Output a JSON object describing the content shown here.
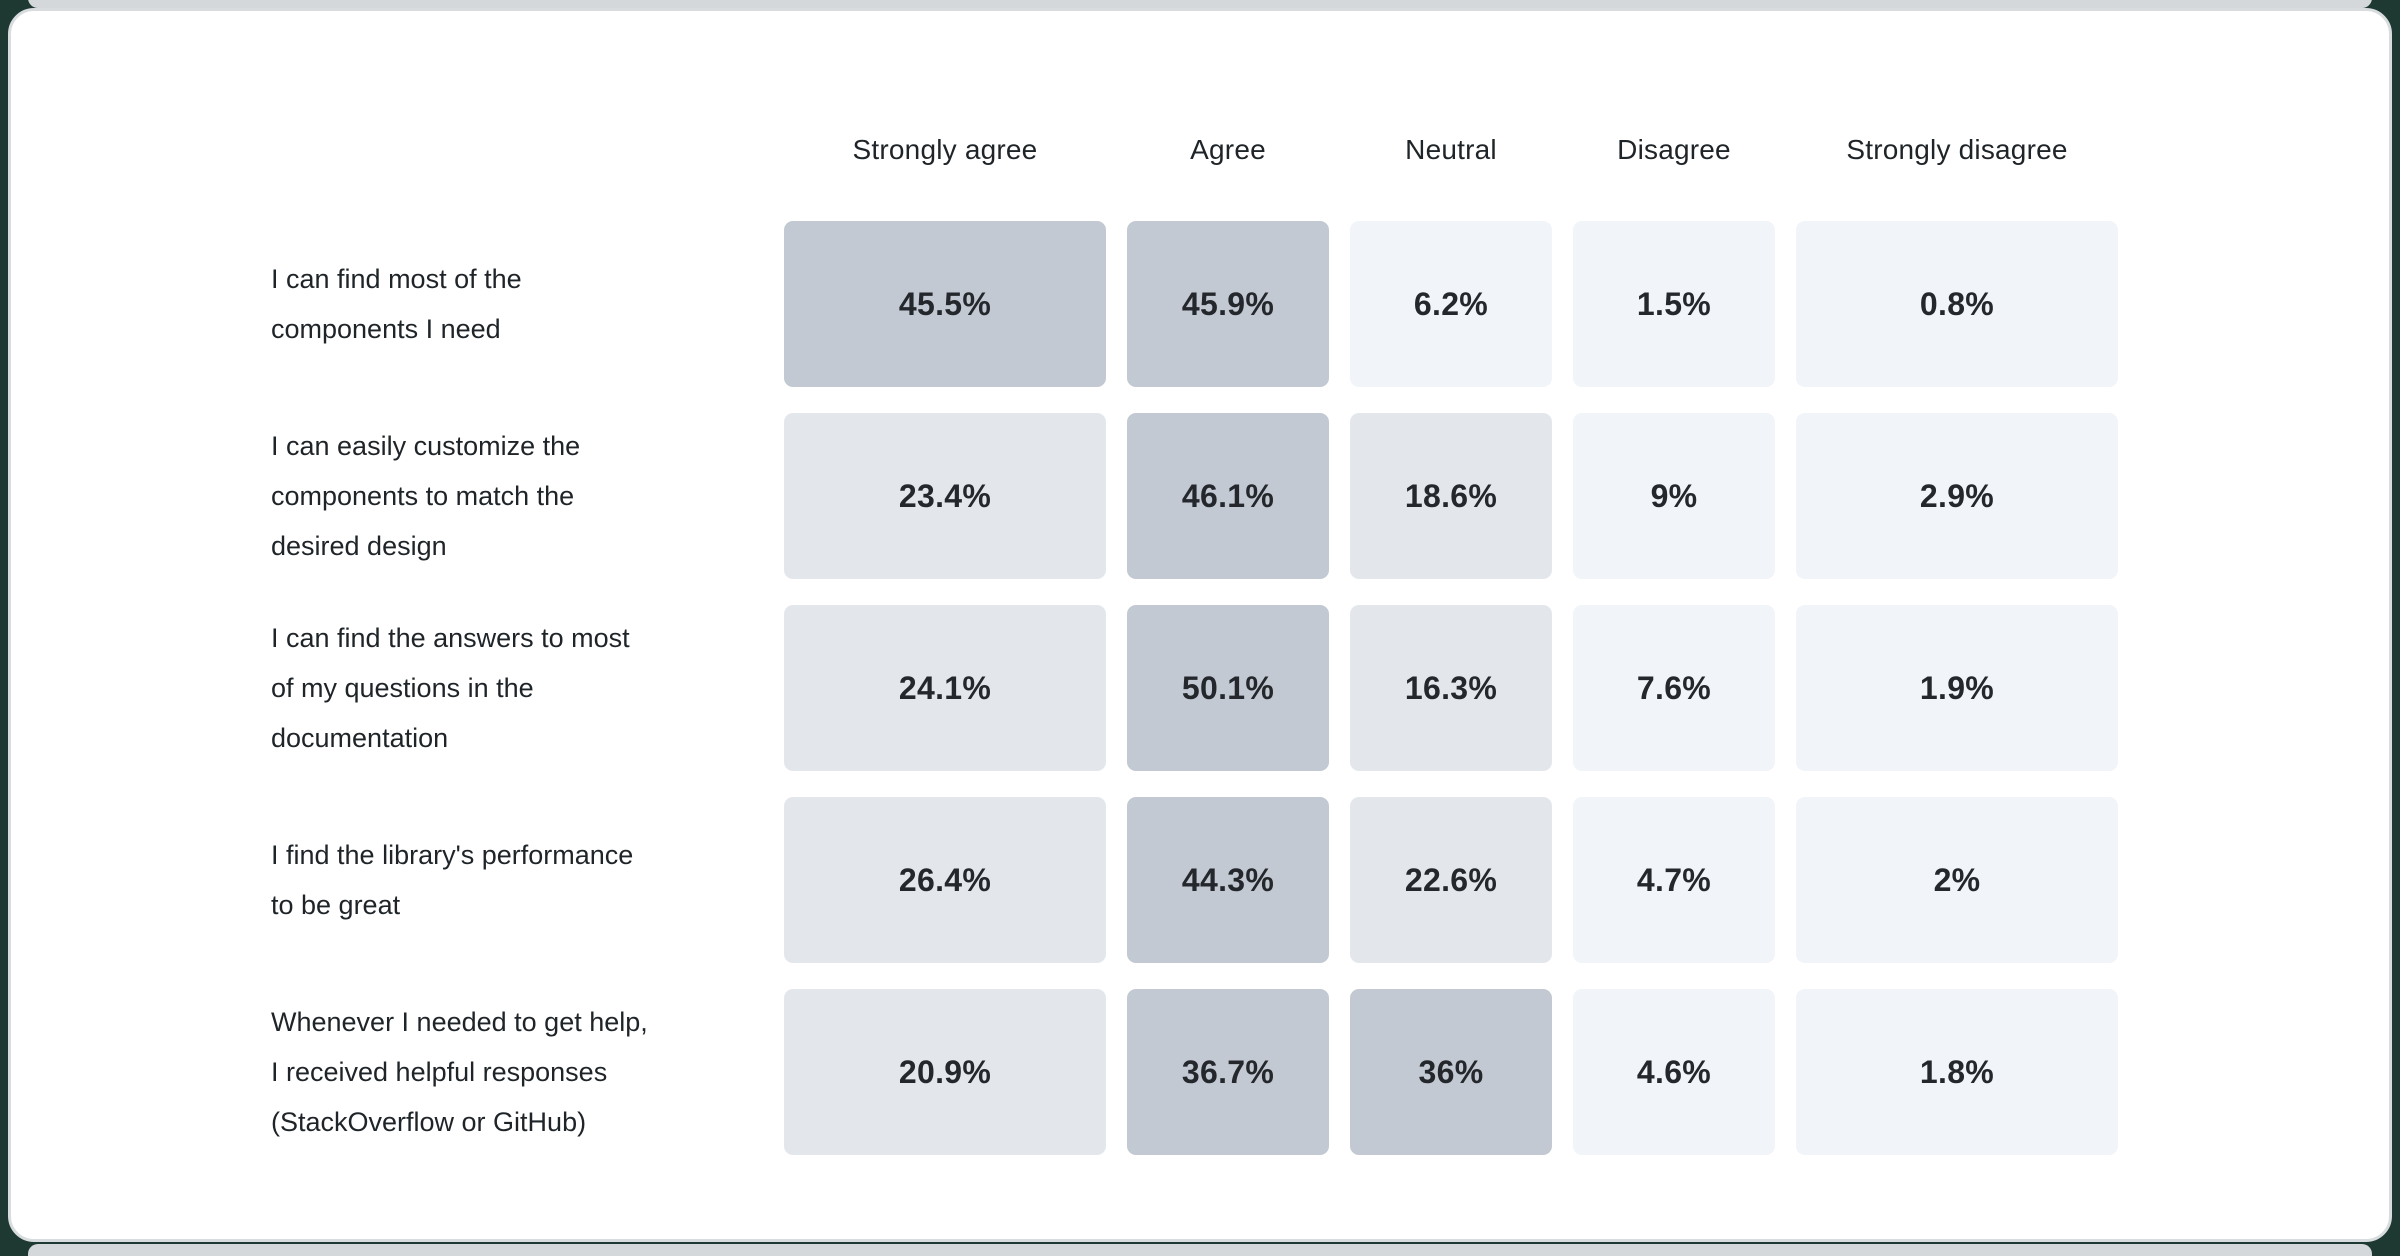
{
  "page": {
    "background_color": "#1e3932",
    "card_color": "#ffffff",
    "card_border_color": "#d9dcdf",
    "adjacent_card_edge_color": "#d4d8da"
  },
  "chart_data": {
    "type": "heatmap",
    "title": "",
    "columns": [
      "Strongly agree",
      "Agree",
      "Neutral",
      "Disagree",
      "Strongly disagree"
    ],
    "rows": [
      {
        "label": "I can find most of the components I need",
        "label_lines": [
          "I can find most of the",
          "components I need"
        ],
        "values": [
          45.5,
          45.9,
          6.2,
          1.5,
          0.8
        ],
        "display_values": [
          "45.5%",
          "45.9%",
          "6.2%",
          "1.5%",
          "0.8%"
        ]
      },
      {
        "label": "I can easily customize the components to match the desired design",
        "label_lines": [
          "I can easily customize the",
          "components to match the",
          "desired design"
        ],
        "values": [
          23.4,
          46.1,
          18.6,
          9,
          2.9
        ],
        "display_values": [
          "23.4%",
          "46.1%",
          "18.6%",
          "9%",
          "2.9%"
        ]
      },
      {
        "label": "I can find the answers to most of my questions in the documentation",
        "label_lines": [
          "I can find the answers to most",
          "of my questions in the",
          "documentation"
        ],
        "values": [
          24.1,
          50.1,
          16.3,
          7.6,
          1.9
        ],
        "display_values": [
          "24.1%",
          "50.1%",
          "16.3%",
          "7.6%",
          "1.9%"
        ]
      },
      {
        "label": "I find the library's performance to be great",
        "label_lines": [
          "I find the library's performance",
          "to be great"
        ],
        "values": [
          26.4,
          44.3,
          22.6,
          4.7,
          2
        ],
        "display_values": [
          "26.4%",
          "44.3%",
          "22.6%",
          "4.7%",
          "2%"
        ]
      },
      {
        "label": "Whenever I needed to get help, I received helpful responses (StackOverflow or GitHub)",
        "label_lines": [
          "Whenever I needed to get help,",
          "I received helpful responses",
          "(StackOverflow or GitHub)"
        ],
        "values": [
          20.9,
          36.7,
          36,
          4.6,
          1.8
        ],
        "display_values": [
          "20.9%",
          "36.7%",
          "36%",
          "4.6%",
          "1.8%"
        ]
      }
    ],
    "shading": {
      "note": "cell background darkens with higher percentage",
      "buckets": [
        {
          "min": 30,
          "color": "#c3c9d2"
        },
        {
          "min": 15,
          "color": "#e3e6eb"
        },
        {
          "min": 0,
          "color": "#f1f4f8"
        }
      ],
      "value_text_color": "#24282d",
      "header_text_color": "#1f2428",
      "label_text_color": "#1f2428"
    },
    "layout_hints": {
      "legend_position": "none",
      "grid": false,
      "wide_columns": [
        "Strongly agree",
        "Strongly disagree"
      ]
    }
  }
}
